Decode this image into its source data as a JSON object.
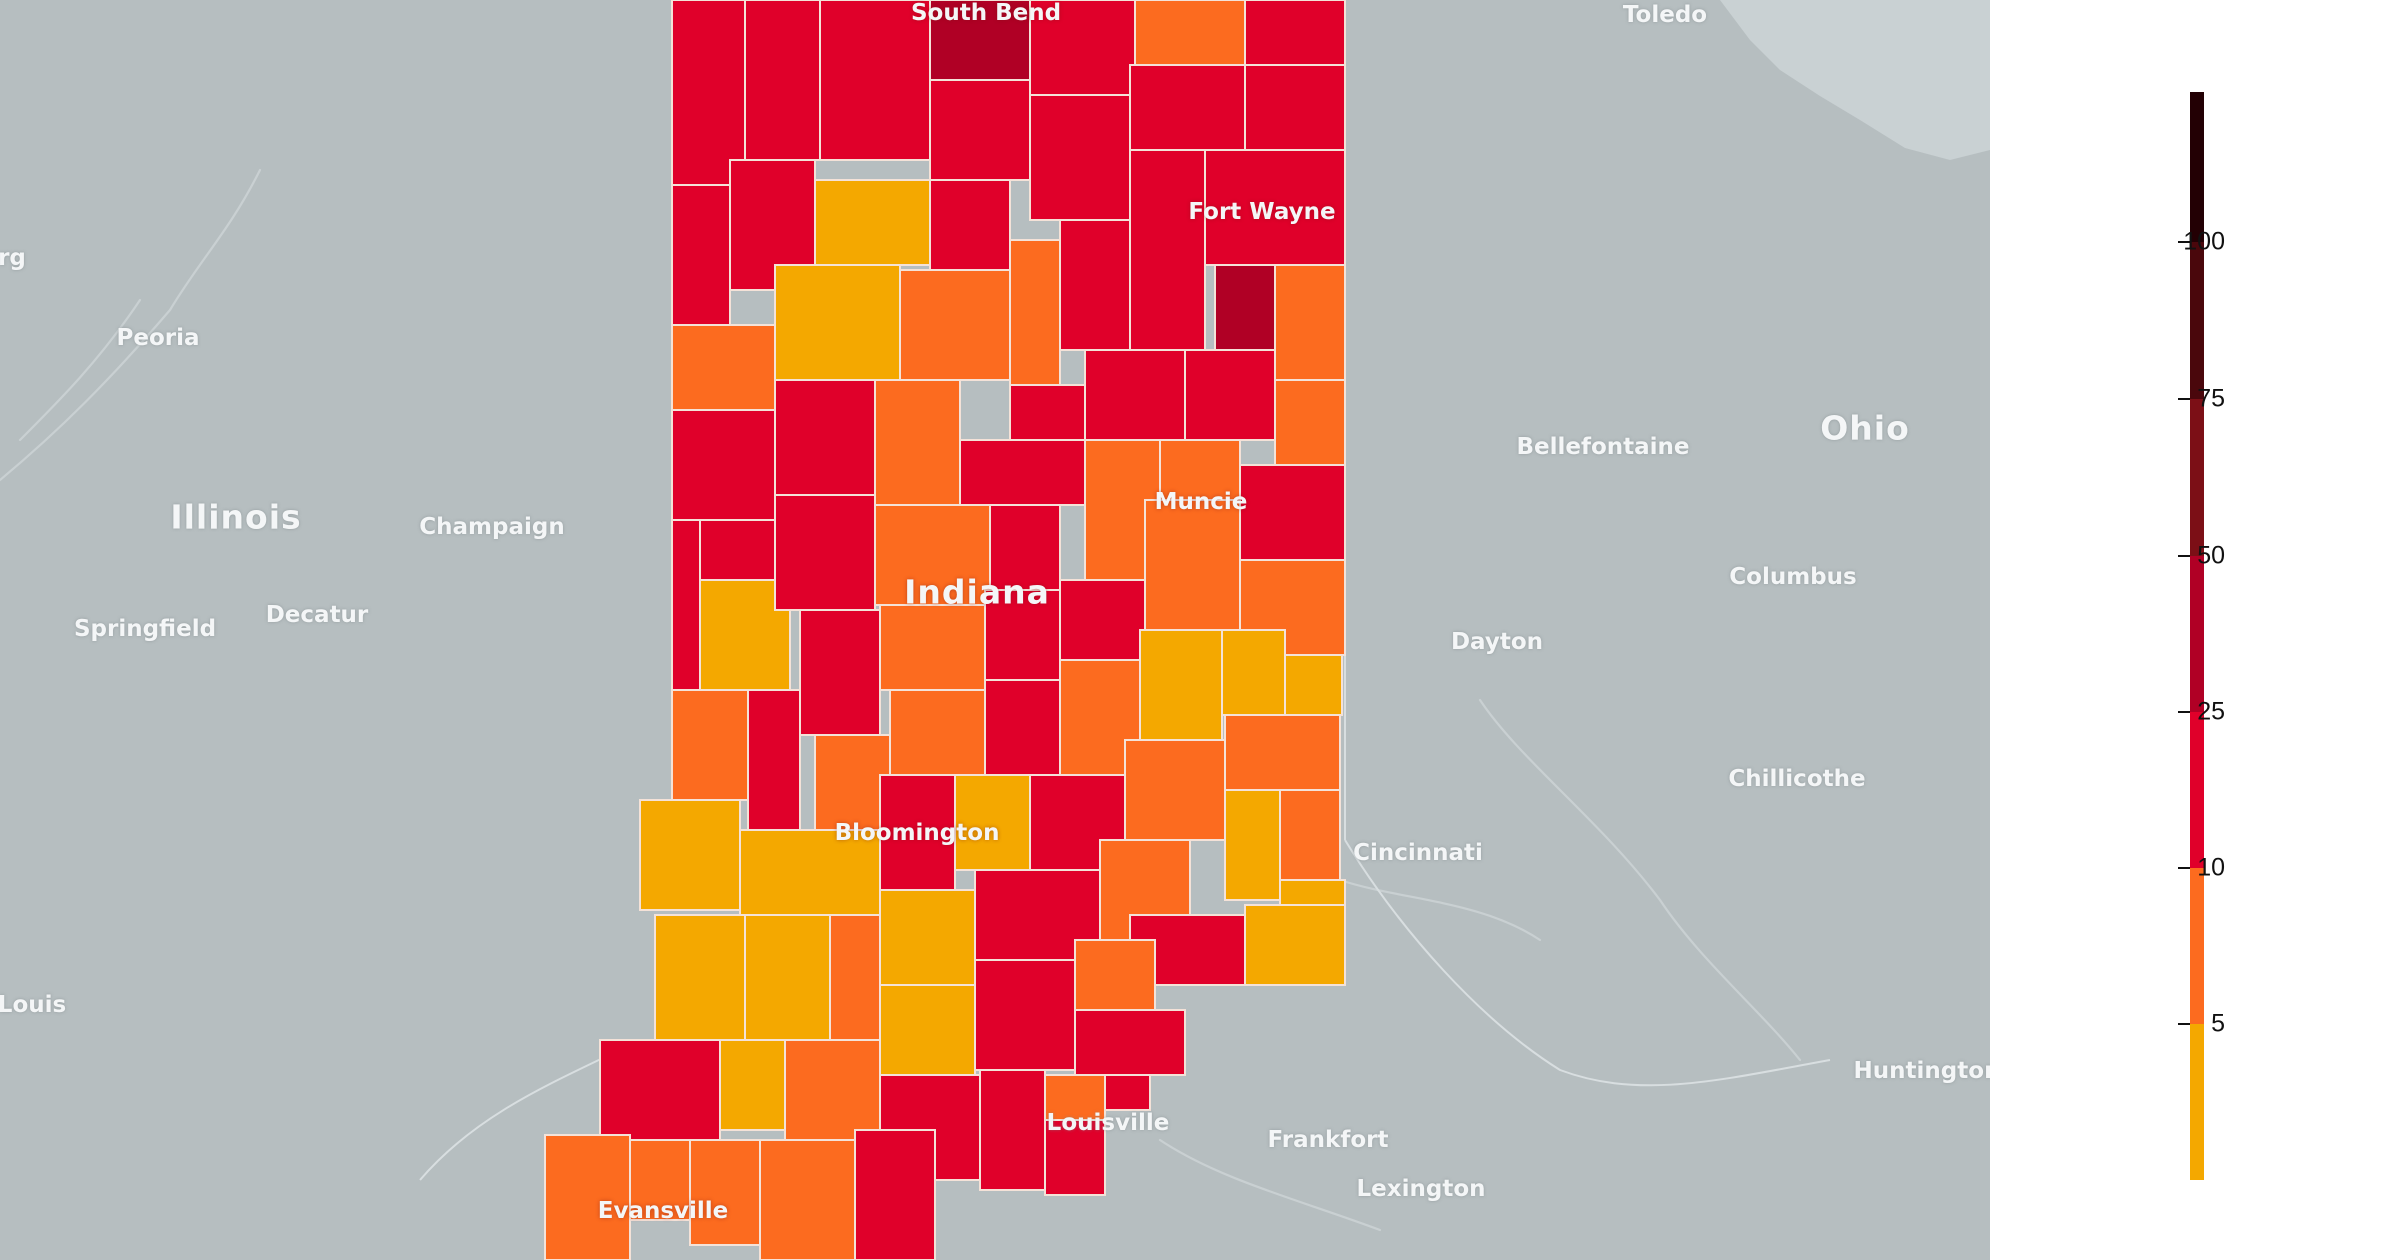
{
  "map": {
    "colors": {
      "background": "#b6bec0",
      "lake": "#c9d1d3",
      "county_border": "#f4e2d8",
      "bin_0_5": "#f4a800",
      "bin_5_10": "#fc6b1f",
      "bin_10_25": "#e0002a",
      "bin_25_50": "#b00025",
      "bin_50_75": "#7c0f16",
      "bin_75_100": "#4a070c",
      "bin_100_plus": "#230004"
    },
    "states": {
      "indiana": "Indiana",
      "illinois": "Illinois",
      "ohio": "Ohio"
    },
    "cities": {
      "south_bend": "South Bend",
      "toledo": "Toledo",
      "fort_wayne": "Fort Wayne",
      "peoria": "Peoria",
      "bellefontaine": "Bellefontaine",
      "champaign": "Champaign",
      "muncie": "Muncie",
      "columbus": "Columbus",
      "springfield": "Springfield",
      "decatur": "Decatur",
      "dayton": "Dayton",
      "chillicothe": "Chillicothe",
      "bloomington": "Bloomington",
      "cincinnati": "Cincinnati",
      "louis": "Louis",
      "huntington": "Huntington",
      "louisville": "Louisville",
      "frankfort": "Frankfort",
      "lexington": "Lexington",
      "evansville": "Evansville",
      "rg": "rg"
    }
  },
  "legend": {
    "ticks": [
      {
        "label": "100",
        "value": 100
      },
      {
        "label": "75",
        "value": 75
      },
      {
        "label": "50",
        "value": 50
      },
      {
        "label": "25",
        "value": 25
      },
      {
        "label": "10",
        "value": 10
      },
      {
        "label": "5",
        "value": 5
      }
    ],
    "bins": [
      {
        "from": 0,
        "to": 5,
        "color": "#f4a800"
      },
      {
        "from": 5,
        "to": 10,
        "color": "#fc6b1f"
      },
      {
        "from": 10,
        "to": 25,
        "color": "#e0002a"
      },
      {
        "from": 25,
        "to": 50,
        "color": "#b00025"
      },
      {
        "from": 50,
        "to": 75,
        "color": "#7c0f16"
      },
      {
        "from": 75,
        "to": 100,
        "color": "#4a070c"
      },
      {
        "from": 100,
        "to": null,
        "color": "#230004"
      }
    ]
  }
}
